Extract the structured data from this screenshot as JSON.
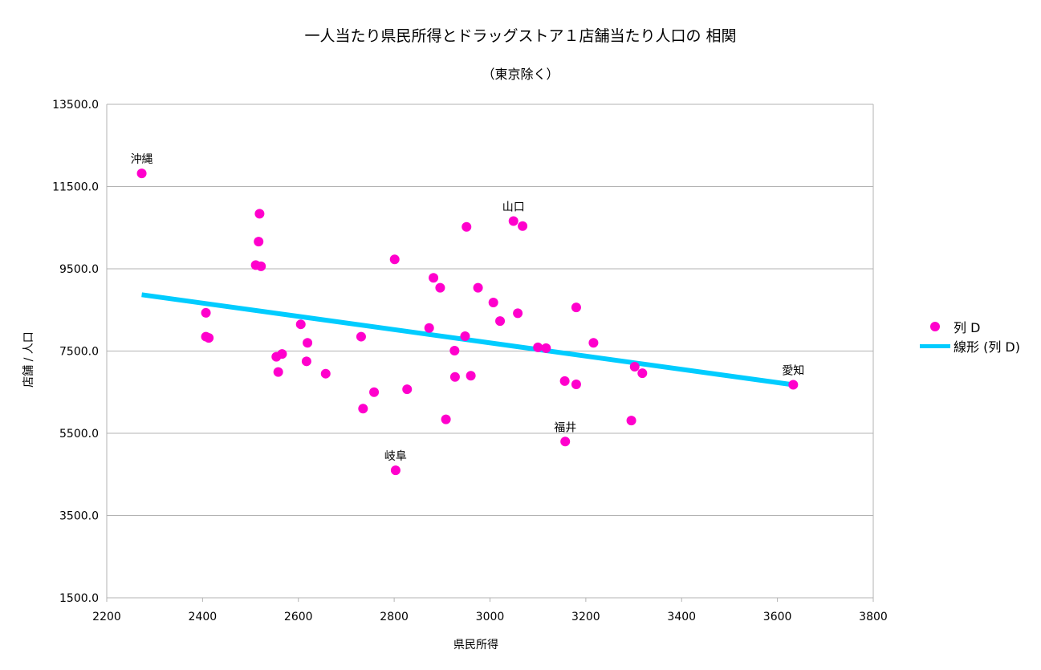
{
  "chart_data": {
    "type": "scatter",
    "title": "一人当たり県民所得とドラッグストア１店舗当たり人口の 相関",
    "subtitle": "（東京除く）",
    "xlabel": "県民所得",
    "ylabel": "店舗 / 人口",
    "xlim": [
      2200,
      3800
    ],
    "ylim": [
      1500,
      13500
    ],
    "x_ticks": [
      "2200",
      "2400",
      "2600",
      "2800",
      "3000",
      "3200",
      "3400",
      "3600",
      "3800"
    ],
    "y_ticks": [
      "1500.0",
      "3500.0",
      "5500.0",
      "7500.0",
      "9500.0",
      "11500.0",
      "13500.0"
    ],
    "colors": {
      "points": "#ff00cc",
      "trend": "#00ccff",
      "grid": "#b3b3b3"
    },
    "series": [
      {
        "name": "列 D",
        "points": [
          {
            "x": 2273,
            "y": 11820,
            "label": "沖縄"
          },
          {
            "x": 2519,
            "y": 10840
          },
          {
            "x": 2517,
            "y": 10160
          },
          {
            "x": 2511,
            "y": 9590
          },
          {
            "x": 2522,
            "y": 9560
          },
          {
            "x": 2407,
            "y": 8430
          },
          {
            "x": 2407,
            "y": 7850
          },
          {
            "x": 2413,
            "y": 7820
          },
          {
            "x": 2605,
            "y": 8150
          },
          {
            "x": 2619,
            "y": 7700
          },
          {
            "x": 2554,
            "y": 7360
          },
          {
            "x": 2566,
            "y": 7430
          },
          {
            "x": 2617,
            "y": 7250
          },
          {
            "x": 2558,
            "y": 6990
          },
          {
            "x": 2657,
            "y": 6950
          },
          {
            "x": 2731,
            "y": 7850
          },
          {
            "x": 2758,
            "y": 6500
          },
          {
            "x": 2735,
            "y": 6100
          },
          {
            "x": 2801,
            "y": 9730
          },
          {
            "x": 2827,
            "y": 6570
          },
          {
            "x": 2803,
            "y": 4600,
            "label": "岐阜"
          },
          {
            "x": 2873,
            "y": 8060
          },
          {
            "x": 2882,
            "y": 9280
          },
          {
            "x": 2896,
            "y": 9040
          },
          {
            "x": 2908,
            "y": 5840
          },
          {
            "x": 2926,
            "y": 7510
          },
          {
            "x": 2927,
            "y": 6870
          },
          {
            "x": 2948,
            "y": 7860
          },
          {
            "x": 2951,
            "y": 10520
          },
          {
            "x": 2960,
            "y": 6900
          },
          {
            "x": 2975,
            "y": 9040
          },
          {
            "x": 3007,
            "y": 8680
          },
          {
            "x": 3021,
            "y": 8230
          },
          {
            "x": 3049,
            "y": 10660,
            "label": "山口"
          },
          {
            "x": 3068,
            "y": 10540
          },
          {
            "x": 3058,
            "y": 8420
          },
          {
            "x": 3100,
            "y": 7590
          },
          {
            "x": 3117,
            "y": 7570
          },
          {
            "x": 3156,
            "y": 6770
          },
          {
            "x": 3157,
            "y": 5300,
            "label": "福井"
          },
          {
            "x": 3180,
            "y": 6690
          },
          {
            "x": 3180,
            "y": 8560
          },
          {
            "x": 3216,
            "y": 7700
          },
          {
            "x": 3295,
            "y": 5810
          },
          {
            "x": 3302,
            "y": 7120
          },
          {
            "x": 3318,
            "y": 6960
          },
          {
            "x": 3633,
            "y": 6680,
            "label": "愛知"
          }
        ]
      },
      {
        "name": "線形 (列 D)",
        "type": "line",
        "points": [
          {
            "x": 2273,
            "y": 8870
          },
          {
            "x": 3633,
            "y": 6680
          }
        ]
      }
    ]
  }
}
